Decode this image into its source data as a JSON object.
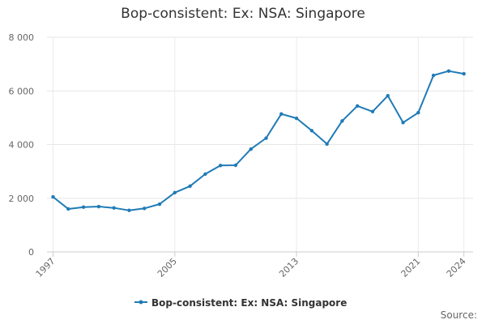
{
  "chart_data": {
    "type": "line",
    "title": "Bop-consistent: Ex: NSA: Singapore",
    "xlabel": "",
    "ylabel": "",
    "ylim": [
      0,
      8000
    ],
    "yticks": [
      0,
      2000,
      4000,
      6000,
      8000
    ],
    "ytick_labels": [
      "0",
      "2 000",
      "4 000",
      "6 000",
      "8 000"
    ],
    "xticks": [
      1997,
      2005,
      2013,
      2021,
      2024
    ],
    "xtick_labels": [
      "1997",
      "2005",
      "2013",
      "2021",
      "2024"
    ],
    "grid": true,
    "legend": "bottom-center",
    "series": [
      {
        "name": "Bop-consistent: Ex: NSA: Singapore",
        "color": "#1f7bb6",
        "x": [
          1997,
          1998,
          1999,
          2000,
          2001,
          2002,
          2003,
          2004,
          2005,
          2006,
          2007,
          2008,
          2009,
          2010,
          2011,
          2012,
          2013,
          2014,
          2015,
          2016,
          2017,
          2018,
          2019,
          2020,
          2021,
          2022,
          2023,
          2024
        ],
        "values": [
          2050,
          1600,
          1670,
          1690,
          1640,
          1550,
          1620,
          1780,
          2210,
          2450,
          2900,
          3220,
          3230,
          3830,
          4240,
          5140,
          4980,
          4520,
          4020,
          4880,
          5440,
          5230,
          5820,
          4820,
          5190,
          6580,
          6740,
          6640
        ]
      }
    ]
  },
  "legend": {
    "label": "Bop-consistent: Ex: NSA: Singapore"
  },
  "source": {
    "label": "Source:"
  }
}
